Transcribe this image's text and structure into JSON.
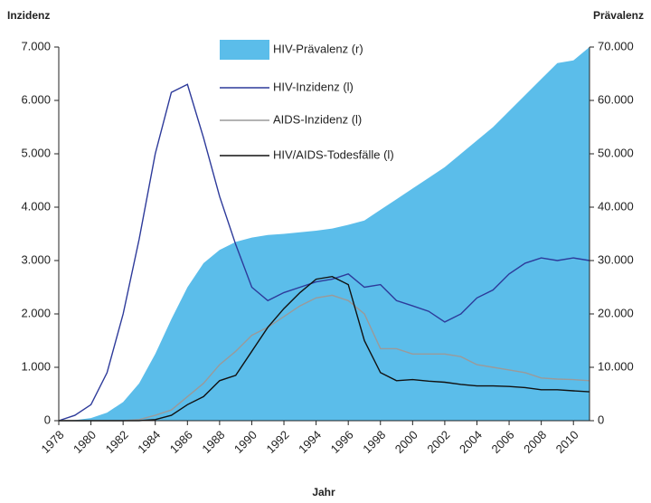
{
  "chart_data": {
    "type": "line",
    "y_label": "Inzidenz",
    "y2_label": "Prävalenz",
    "x_label": "Jahr",
    "x": [
      1978,
      1979,
      1980,
      1981,
      1982,
      1983,
      1984,
      1985,
      1986,
      1987,
      1988,
      1989,
      1990,
      1991,
      1992,
      1993,
      1994,
      1995,
      1996,
      1997,
      1998,
      1999,
      2000,
      2001,
      2002,
      2003,
      2004,
      2005,
      2006,
      2007,
      2008,
      2009,
      2010,
      2011
    ],
    "series": [
      {
        "name": "HIV-Prävalenz (r)",
        "color": "#5bbdea",
        "axis": "y2",
        "style": "area",
        "values": [
          0,
          100,
          500,
          1500,
          3500,
          7000,
          12500,
          19000,
          25000,
          29500,
          32000,
          33500,
          34300,
          34800,
          35000,
          35300,
          35600,
          36000,
          36700,
          37500,
          39500,
          41500,
          43500,
          45500,
          47500,
          50000,
          52500,
          55000,
          58000,
          61000,
          64000,
          67000,
          67500,
          70000
        ]
      },
      {
        "name": "HIV-Inzidenz (l)",
        "color": "#2d3a9a",
        "values": [
          0,
          100,
          300,
          900,
          2000,
          3400,
          5000,
          6150,
          6300,
          5300,
          4200,
          3300,
          2500,
          2250,
          2400,
          2500,
          2600,
          2650,
          2750,
          2500,
          2550,
          2250,
          2150,
          2050,
          1850,
          2000,
          2300,
          2450,
          2750,
          2950,
          3050,
          3000,
          3050,
          3000
        ]
      },
      {
        "name": "AIDS-Inzidenz (l)",
        "color": "#9a9a9a",
        "values": [
          0,
          0,
          0,
          0,
          0,
          20,
          100,
          200,
          450,
          700,
          1050,
          1300,
          1600,
          1750,
          1950,
          2150,
          2300,
          2350,
          2250,
          2000,
          1350,
          1350,
          1250,
          1250,
          1250,
          1200,
          1050,
          1000,
          950,
          900,
          800,
          780,
          770,
          750
        ]
      },
      {
        "name": "HIV/AIDS-Todesfälle (l)",
        "color": "#111111",
        "values": [
          0,
          0,
          0,
          0,
          0,
          0,
          20,
          100,
          300,
          450,
          750,
          850,
          1300,
          1750,
          2100,
          2400,
          2650,
          2700,
          2550,
          1500,
          900,
          750,
          770,
          740,
          720,
          680,
          650,
          650,
          640,
          620,
          580,
          580,
          560,
          540
        ]
      }
    ],
    "xlim": [
      1978,
      2011
    ],
    "xticks": [
      1978,
      1980,
      1982,
      1984,
      1986,
      1988,
      1990,
      1992,
      1994,
      1996,
      1998,
      2000,
      2002,
      2004,
      2006,
      2008,
      2010
    ],
    "ylim": [
      0,
      7000
    ],
    "yticks": [
      0,
      {
        "value": 1000,
        "label": "1.000"
      },
      {
        "value": 2000,
        "label": "2.000"
      },
      {
        "value": 3000,
        "label": "3.000"
      },
      {
        "value": 4000,
        "label": "4.000"
      },
      {
        "value": 5000,
        "label": "5.000"
      },
      {
        "value": 6000,
        "label": "6.000"
      },
      {
        "value": 7000,
        "label": "7.000"
      }
    ],
    "y2lim": [
      0,
      70000
    ],
    "y2ticks": [
      0,
      {
        "value": 10000,
        "label": "10.000"
      },
      {
        "value": 20000,
        "label": "20.000"
      },
      {
        "value": 30000,
        "label": "30.000"
      },
      {
        "value": 40000,
        "label": "40.000"
      },
      {
        "value": 50000,
        "label": "50.000"
      },
      {
        "value": 60000,
        "label": "60.000"
      },
      {
        "value": 70000,
        "label": "70.000"
      }
    ]
  }
}
